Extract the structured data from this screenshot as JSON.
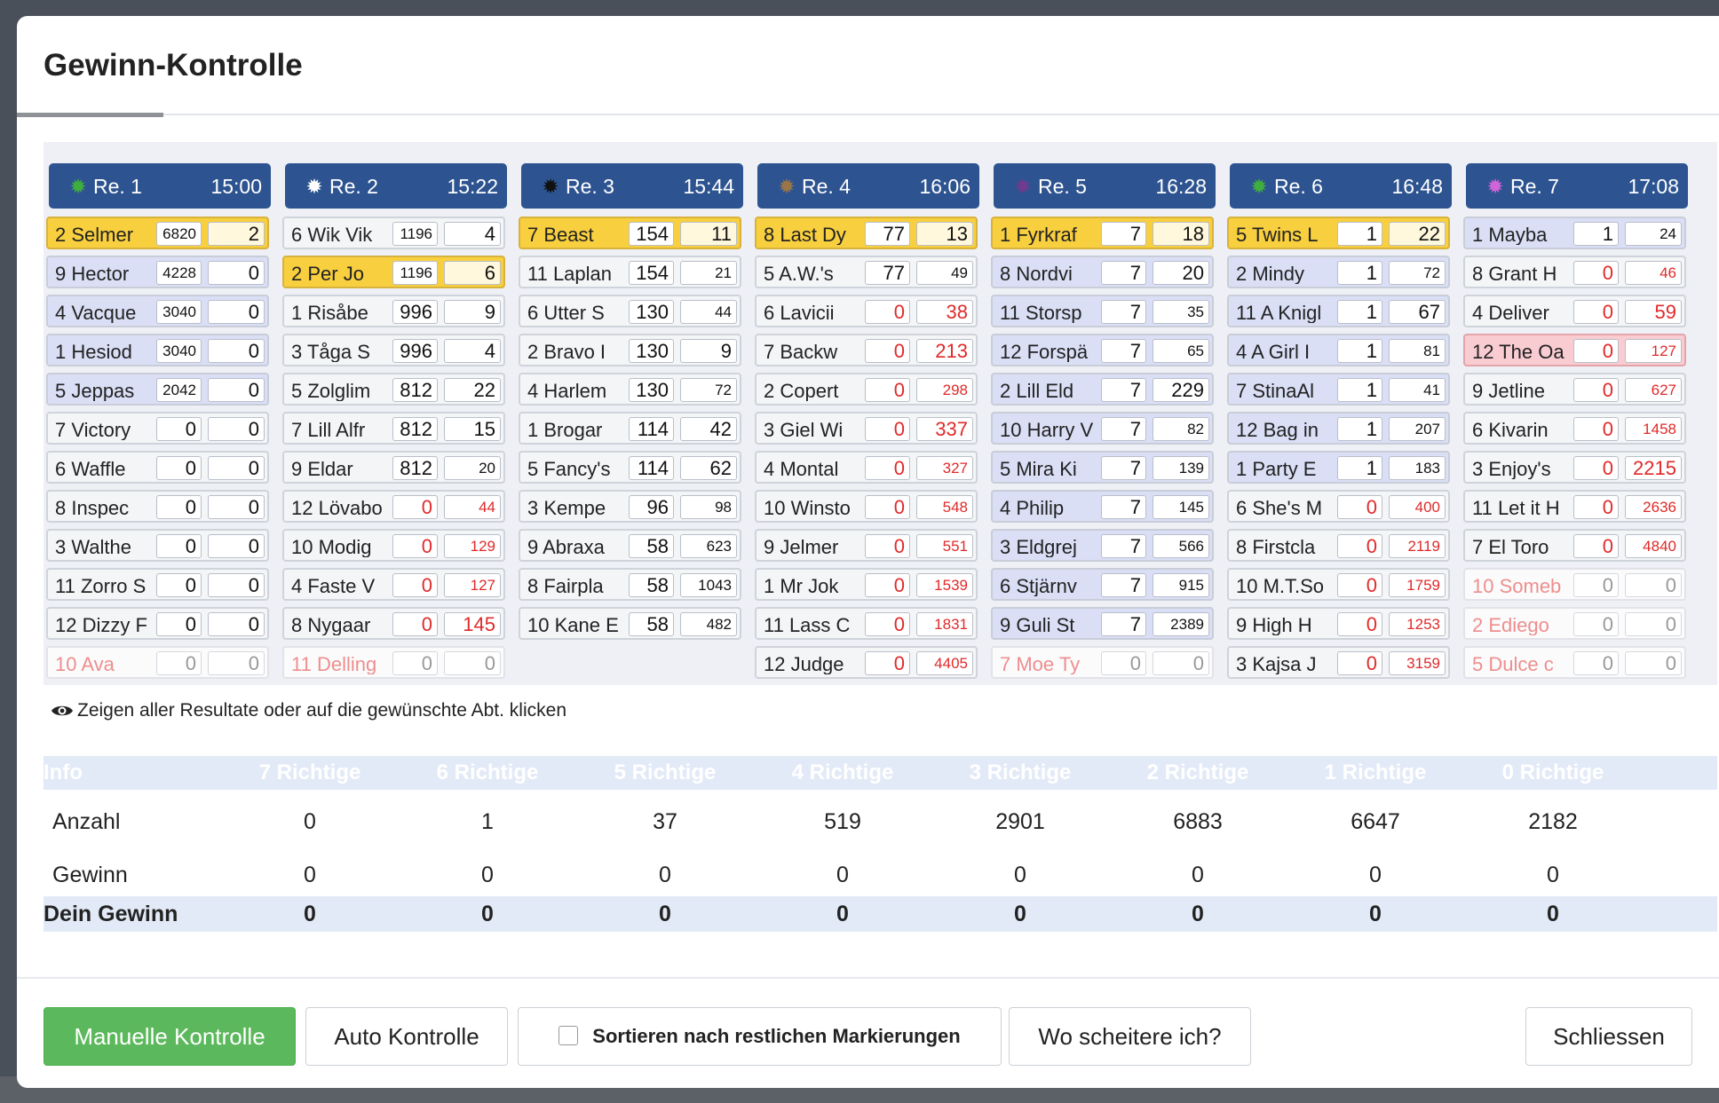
{
  "dialog": {
    "title": "Gewinn-Kontrolle",
    "show_all_text": "Zeigen aller Resultate oder auf die gewünschte Abt. klicken"
  },
  "races": [
    {
      "label": "Re. 1",
      "time": "15:00",
      "icon_color": "#3fae3f",
      "icon": "sun-icon",
      "rows": [
        {
          "name": "2 Selmer",
          "v1": "6820",
          "v2": "2",
          "state": "sel",
          "v1_small": true
        },
        {
          "name": "9 Hector",
          "v1": "4228",
          "v2": "0",
          "v1_small": true
        },
        {
          "name": "4 Vacque",
          "v1": "3040",
          "v2": "0",
          "v1_small": true
        },
        {
          "name": "1 Hesiod",
          "v1": "3040",
          "v2": "0",
          "v1_small": true
        },
        {
          "name": "5 Jeppas",
          "v1": "2042",
          "v2": "0",
          "v1_small": true
        },
        {
          "name": "7 Victory",
          "v1": "0",
          "v2": "0",
          "state": "gray"
        },
        {
          "name": "6 Waffle",
          "v1": "0",
          "v2": "0",
          "state": "gray"
        },
        {
          "name": "8 Inspec",
          "v1": "0",
          "v2": "0",
          "state": "gray"
        },
        {
          "name": "3 Walthe",
          "v1": "0",
          "v2": "0",
          "state": "gray"
        },
        {
          "name": "11 Zorro S",
          "v1": "0",
          "v2": "0",
          "state": "gray"
        },
        {
          "name": "12 Dizzy F",
          "v1": "0",
          "v2": "0",
          "state": "gray"
        },
        {
          "name": "10 Ava",
          "v1": "0",
          "v2": "0",
          "state": "faded"
        }
      ]
    },
    {
      "label": "Re. 2",
      "time": "15:22",
      "icon_color": "#ffffff",
      "icon": "sun-icon",
      "rows": [
        {
          "name": "6 Wik Vik",
          "v1": "1196",
          "v2": "4",
          "state": "gray",
          "v1_small": true
        },
        {
          "name": "2 Per Jo",
          "v1": "1196",
          "v2": "6",
          "state": "sel",
          "v1_small": true
        },
        {
          "name": "1 Risåbe",
          "v1": "996",
          "v2": "9",
          "state": "gray"
        },
        {
          "name": "3 Tåga S",
          "v1": "996",
          "v2": "4",
          "state": "gray"
        },
        {
          "name": "5 Zolglim",
          "v1": "812",
          "v2": "22",
          "state": "gray"
        },
        {
          "name": "7 Lill Alfr",
          "v1": "812",
          "v2": "15",
          "state": "gray"
        },
        {
          "name": "9 Eldar",
          "v1": "812",
          "v2": "20",
          "state": "gray",
          "v2_small": true
        },
        {
          "name": "12 Lövabo",
          "v1": "0",
          "v2": "44",
          "state": "gray",
          "v1_red": true,
          "v2_red": true,
          "v2_small": true
        },
        {
          "name": "10 Modig",
          "v1": "0",
          "v2": "129",
          "state": "gray",
          "v1_red": true,
          "v2_red": true,
          "v2_small": true
        },
        {
          "name": "4 Faste V",
          "v1": "0",
          "v2": "127",
          "state": "gray",
          "v1_red": true,
          "v2_red": true,
          "v2_small": true
        },
        {
          "name": "8 Nygaar",
          "v1": "0",
          "v2": "145",
          "state": "gray",
          "v1_red": true,
          "v2_red": true
        },
        {
          "name": "11 Delling",
          "v1": "0",
          "v2": "0",
          "state": "faded"
        }
      ]
    },
    {
      "label": "Re. 3",
      "time": "15:44",
      "icon_color": "#111111",
      "icon": "sun-icon",
      "rows": [
        {
          "name": "7 Beast",
          "v1": "154",
          "v2": "11",
          "state": "sel"
        },
        {
          "name": "11 Laplan",
          "v1": "154",
          "v2": "21",
          "state": "gray",
          "v2_small": true
        },
        {
          "name": "6 Utter S",
          "v1": "130",
          "v2": "44",
          "state": "gray",
          "v2_small": true
        },
        {
          "name": "2 Bravo I",
          "v1": "130",
          "v2": "9",
          "state": "gray"
        },
        {
          "name": "4 Harlem",
          "v1": "130",
          "v2": "72",
          "state": "gray",
          "v2_small": true
        },
        {
          "name": "1 Brogar",
          "v1": "114",
          "v2": "42",
          "state": "gray"
        },
        {
          "name": "5 Fancy's",
          "v1": "114",
          "v2": "62",
          "state": "gray"
        },
        {
          "name": "3 Kempe",
          "v1": "96",
          "v2": "98",
          "state": "gray",
          "v2_small": true
        },
        {
          "name": "9 Abraxa",
          "v1": "58",
          "v2": "623",
          "state": "gray",
          "v2_small": true
        },
        {
          "name": "8 Fairpla",
          "v1": "58",
          "v2": "1043",
          "state": "gray",
          "v2_small": true
        },
        {
          "name": "10 Kane E",
          "v1": "58",
          "v2": "482",
          "state": "gray",
          "v2_small": true
        }
      ]
    },
    {
      "label": "Re. 4",
      "time": "16:06",
      "icon_color": "#9a7548",
      "icon": "sun-icon",
      "rows": [
        {
          "name": "8 Last Dy",
          "v1": "77",
          "v2": "13",
          "state": "sel"
        },
        {
          "name": "5 A.W.'s",
          "v1": "77",
          "v2": "49",
          "state": "gray",
          "v2_small": true
        },
        {
          "name": "6 Lavicii",
          "v1": "0",
          "v2": "38",
          "state": "gray",
          "v1_red": true,
          "v2_red": true
        },
        {
          "name": "7 Backw",
          "v1": "0",
          "v2": "213",
          "state": "gray",
          "v1_red": true,
          "v2_red": true
        },
        {
          "name": "2 Copert",
          "v1": "0",
          "v2": "298",
          "state": "gray",
          "v1_red": true,
          "v2_red": true,
          "v2_small": true
        },
        {
          "name": "3 Giel Wi",
          "v1": "0",
          "v2": "337",
          "state": "gray",
          "v1_red": true,
          "v2_red": true
        },
        {
          "name": "4 Montal",
          "v1": "0",
          "v2": "327",
          "state": "gray",
          "v1_red": true,
          "v2_red": true,
          "v2_small": true
        },
        {
          "name": "10 Winsto",
          "v1": "0",
          "v2": "548",
          "state": "gray",
          "v1_red": true,
          "v2_red": true,
          "v2_small": true
        },
        {
          "name": "9 Jelmer",
          "v1": "0",
          "v2": "551",
          "state": "gray",
          "v1_red": true,
          "v2_red": true,
          "v2_small": true
        },
        {
          "name": "1 Mr Jok",
          "v1": "0",
          "v2": "1539",
          "state": "gray",
          "v1_red": true,
          "v2_red": true,
          "v2_small": true
        },
        {
          "name": "11 Lass C",
          "v1": "0",
          "v2": "1831",
          "state": "gray",
          "v1_red": true,
          "v2_red": true,
          "v2_small": true
        },
        {
          "name": "12 Judge",
          "v1": "0",
          "v2": "4405",
          "state": "gray",
          "v1_red": true,
          "v2_red": true,
          "v2_small": true
        }
      ]
    },
    {
      "label": "Re. 5",
      "time": "16:28",
      "icon_color": "#6f3b8f",
      "icon": "sun-icon",
      "rows": [
        {
          "name": "1 Fyrkraf",
          "v1": "7",
          "v2": "18",
          "state": "sel"
        },
        {
          "name": "8 Nordvi",
          "v1": "7",
          "v2": "20"
        },
        {
          "name": "11 Storsp",
          "v1": "7",
          "v2": "35",
          "v2_small": true
        },
        {
          "name": "12 Forspä",
          "v1": "7",
          "v2": "65",
          "v2_small": true
        },
        {
          "name": "2 Lill Eld",
          "v1": "7",
          "v2": "229"
        },
        {
          "name": "10 Harry V",
          "v1": "7",
          "v2": "82",
          "v2_small": true
        },
        {
          "name": "5 Mira Ki",
          "v1": "7",
          "v2": "139",
          "v2_small": true
        },
        {
          "name": "4 Philip",
          "v1": "7",
          "v2": "145",
          "v2_small": true
        },
        {
          "name": "3 Eldgrej",
          "v1": "7",
          "v2": "566",
          "v2_small": true
        },
        {
          "name": "6 Stjärnv",
          "v1": "7",
          "v2": "915",
          "v2_small": true
        },
        {
          "name": "9 Guli St",
          "v1": "7",
          "v2": "2389",
          "v2_small": true
        },
        {
          "name": "7 Moe Ty",
          "v1": "0",
          "v2": "0",
          "state": "faded"
        }
      ]
    },
    {
      "label": "Re. 6",
      "time": "16:48",
      "icon_color": "#3fae3f",
      "icon": "sun-icon",
      "rows": [
        {
          "name": "5 Twins L",
          "v1": "1",
          "v2": "22",
          "state": "sel"
        },
        {
          "name": "2 Mindy",
          "v1": "1",
          "v2": "72",
          "v2_small": true
        },
        {
          "name": "11 A Knigl",
          "v1": "1",
          "v2": "67"
        },
        {
          "name": "4 A Girl I",
          "v1": "1",
          "v2": "81",
          "v2_small": true
        },
        {
          "name": "7 StinaAl",
          "v1": "1",
          "v2": "41",
          "v2_small": true
        },
        {
          "name": "12 Bag in",
          "v1": "1",
          "v2": "207",
          "v2_small": true
        },
        {
          "name": "1 Party E",
          "v1": "1",
          "v2": "183",
          "v2_small": true
        },
        {
          "name": "6 She's M",
          "v1": "0",
          "v2": "400",
          "state": "gray",
          "v1_red": true,
          "v2_red": true,
          "v2_small": true
        },
        {
          "name": "8 Firstcla",
          "v1": "0",
          "v2": "2119",
          "state": "gray",
          "v1_red": true,
          "v2_red": true,
          "v2_small": true
        },
        {
          "name": "10 M.T.So",
          "v1": "0",
          "v2": "1759",
          "state": "gray",
          "v1_red": true,
          "v2_red": true,
          "v2_small": true
        },
        {
          "name": "9 High H",
          "v1": "0",
          "v2": "1253",
          "state": "gray",
          "v1_red": true,
          "v2_red": true,
          "v2_small": true
        },
        {
          "name": "3 Kajsa J",
          "v1": "0",
          "v2": "3159",
          "state": "gray",
          "v1_red": true,
          "v2_red": true,
          "v2_small": true
        }
      ]
    },
    {
      "label": "Re. 7",
      "time": "17:08",
      "icon_color": "#d264d9",
      "icon": "sun-icon",
      "rows": [
        {
          "name": "1 Mayba",
          "v1": "1",
          "v2": "24",
          "v2_small": true
        },
        {
          "name": "8 Grant H",
          "v1": "0",
          "v2": "46",
          "state": "gray",
          "v1_red": true,
          "v2_red": true,
          "v2_small": true
        },
        {
          "name": "4 Deliver",
          "v1": "0",
          "v2": "59",
          "state": "gray",
          "v1_red": true,
          "v2_red": true
        },
        {
          "name": "12 The Oa",
          "v1": "0",
          "v2": "127",
          "state": "pink",
          "v1_red": true,
          "v2_red": true,
          "v2_small": true
        },
        {
          "name": "9 Jetline",
          "v1": "0",
          "v2": "627",
          "state": "gray",
          "v1_red": true,
          "v2_red": true,
          "v2_small": true
        },
        {
          "name": "6 Kivarin",
          "v1": "0",
          "v2": "1458",
          "state": "gray",
          "v1_red": true,
          "v2_red": true,
          "v2_small": true
        },
        {
          "name": "3 Enjoy's",
          "v1": "0",
          "v2": "2215",
          "state": "gray",
          "v1_red": true,
          "v2_red": true
        },
        {
          "name": "11 Let it H",
          "v1": "0",
          "v2": "2636",
          "state": "gray",
          "v1_red": true,
          "v2_red": true,
          "v2_small": true
        },
        {
          "name": "7 El Toro",
          "v1": "0",
          "v2": "4840",
          "state": "gray",
          "v1_red": true,
          "v2_red": true,
          "v2_small": true
        },
        {
          "name": "10 Someb",
          "v1": "0",
          "v2": "0",
          "state": "faded"
        },
        {
          "name": "2 Ediego",
          "v1": "0",
          "v2": "0",
          "state": "faded"
        },
        {
          "name": "5 Dulce c",
          "v1": "0",
          "v2": "0",
          "state": "faded"
        }
      ]
    }
  ],
  "results": {
    "headers": [
      "Info",
      "7 Richtige",
      "6 Richtige",
      "5 Richtige",
      "4 Richtige",
      "3 Richtige",
      "2 Richtige",
      "1 Richtige",
      "0 Richtige"
    ],
    "rows": [
      {
        "label": "Anzahl",
        "values": [
          "0",
          "1",
          "37",
          "519",
          "2901",
          "6883",
          "6647",
          "2182"
        ]
      },
      {
        "label": "Gewinn",
        "values": [
          "0",
          "0",
          "0",
          "0",
          "0",
          "0",
          "0",
          "0"
        ]
      },
      {
        "label": "Dein Gewinn",
        "values": [
          "0",
          "0",
          "0",
          "0",
          "0",
          "0",
          "0",
          "0"
        ]
      }
    ]
  },
  "footer": {
    "manual_label": "Manuelle Kontrolle",
    "auto_label": "Auto Kontrolle",
    "sort_label": "Sortieren nach restlichen Markierungen",
    "where_label": "Wo scheitere ich?",
    "close_label": "Schliessen"
  }
}
